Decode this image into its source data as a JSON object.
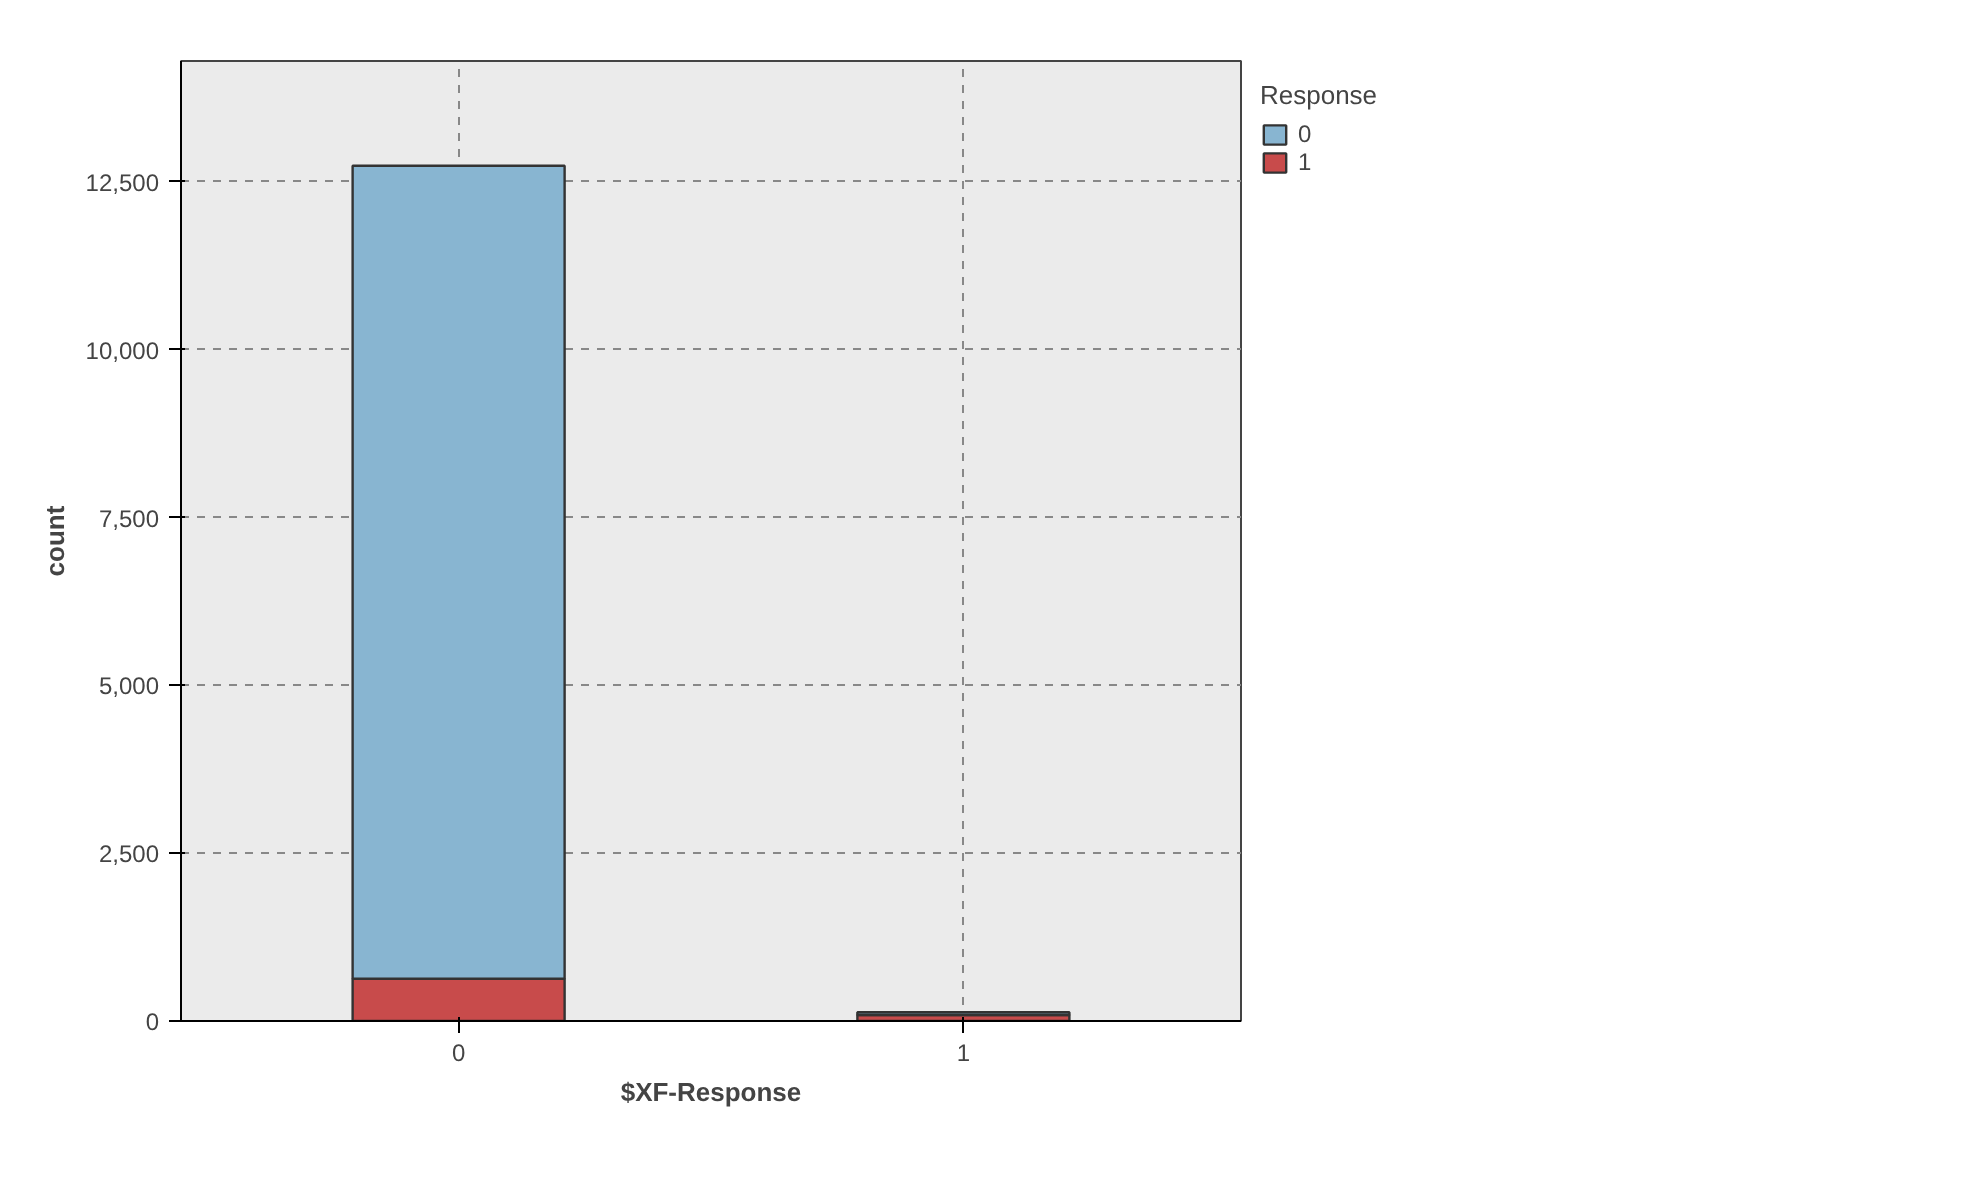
{
  "chart_data": {
    "type": "bar",
    "stacked": true,
    "xlabel": "$XF-Response",
    "ylabel": "count",
    "legend_title": "Response",
    "categories": [
      "0",
      "1"
    ],
    "series": [
      {
        "name": "1",
        "color": "#c84b4b",
        "values": [
          630,
          90
        ]
      },
      {
        "name": "0",
        "color": "#88b5d1",
        "values": [
          12110,
          40
        ]
      }
    ],
    "ylim": [
      0,
      14300
    ],
    "yticks": [
      0,
      {
        "value": 2500,
        "label": "2,500"
      },
      {
        "value": 5000,
        "label": "5,000"
      },
      {
        "value": 7500,
        "label": "7,500"
      },
      {
        "value": 10000,
        "label": "10,000"
      },
      {
        "value": 12500,
        "label": "12,500"
      }
    ],
    "grid": true,
    "legend": "top right"
  }
}
